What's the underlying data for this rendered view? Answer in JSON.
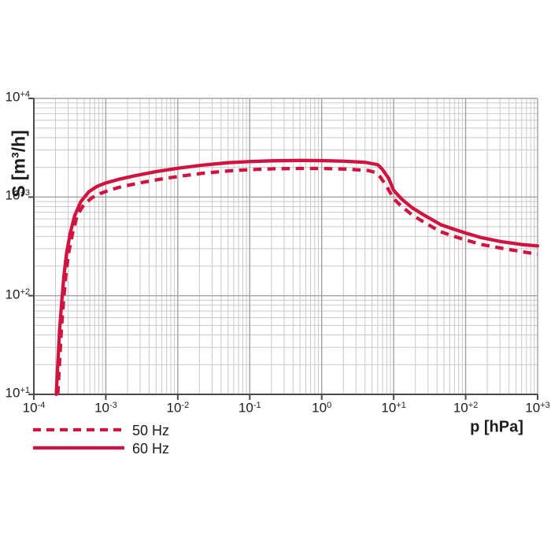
{
  "page": {
    "background": "#ffffff"
  },
  "chart_data": {
    "type": "line",
    "title": "",
    "xlabel": "p [hPa]",
    "ylabel": "S [m³/h]",
    "x_scale": "log",
    "y_scale": "log",
    "xlim": [
      0.0001,
      1000
    ],
    "ylim": [
      10,
      10000
    ],
    "x_tick_exponents": [
      "-4",
      "-3",
      "-2",
      "-1",
      "0",
      "+1",
      "+2",
      "+3"
    ],
    "y_tick_exponents": [
      "+1",
      "+2",
      "+3",
      "+4"
    ],
    "grid": "major and minor log gridlines on both axes",
    "legend_position": "below plot, bottom-left",
    "colors": {
      "curve": "#d01440",
      "grid_minor": "#c9c9c9",
      "grid_major": "#a2a2a2",
      "axis": "#4a4a4a",
      "text": "#1d1d1b"
    },
    "series": [
      {
        "name": "50 Hz",
        "style": "dashed",
        "points": [
          [
            0.000215,
            10
          ],
          [
            0.000227,
            20
          ],
          [
            0.000241,
            45
          ],
          [
            0.000259,
            90
          ],
          [
            0.000278,
            160
          ],
          [
            0.000304,
            270
          ],
          [
            0.000345,
            430
          ],
          [
            0.0004,
            650
          ],
          [
            0.0005,
            850
          ],
          [
            0.00065,
            990
          ],
          [
            0.00085,
            1090
          ],
          [
            0.00115,
            1180
          ],
          [
            0.0017,
            1280
          ],
          [
            0.0028,
            1380
          ],
          [
            0.0055,
            1510
          ],
          [
            0.011,
            1630
          ],
          [
            0.022,
            1740
          ],
          [
            0.055,
            1850
          ],
          [
            0.11,
            1900
          ],
          [
            0.22,
            1935
          ],
          [
            0.55,
            1950
          ],
          [
            1.1,
            1945
          ],
          [
            2.2,
            1920
          ],
          [
            4.4,
            1860
          ],
          [
            5.5,
            1780
          ],
          [
            6.5,
            1600
          ],
          [
            8,
            1280
          ],
          [
            10,
            960
          ],
          [
            13,
            800
          ],
          [
            18,
            660
          ],
          [
            27,
            550
          ],
          [
            45,
            445
          ],
          [
            70,
            398
          ],
          [
            100,
            368
          ],
          [
            160,
            332
          ],
          [
            300,
            305
          ],
          [
            600,
            280
          ],
          [
            1000,
            263
          ]
        ]
      },
      {
        "name": "60 Hz",
        "style": "solid",
        "points": [
          [
            0.000205,
            10
          ],
          [
            0.000215,
            20
          ],
          [
            0.000228,
            45
          ],
          [
            0.000245,
            90
          ],
          [
            0.000262,
            160
          ],
          [
            0.000285,
            270
          ],
          [
            0.00032,
            430
          ],
          [
            0.00037,
            650
          ],
          [
            0.00045,
            900
          ],
          [
            0.00058,
            1130
          ],
          [
            0.00075,
            1280
          ],
          [
            0.001,
            1390
          ],
          [
            0.0015,
            1510
          ],
          [
            0.0025,
            1640
          ],
          [
            0.005,
            1810
          ],
          [
            0.01,
            1960
          ],
          [
            0.02,
            2090
          ],
          [
            0.05,
            2230
          ],
          [
            0.1,
            2290
          ],
          [
            0.2,
            2330
          ],
          [
            0.5,
            2350
          ],
          [
            1,
            2340
          ],
          [
            2,
            2310
          ],
          [
            4,
            2250
          ],
          [
            6,
            2130
          ],
          [
            7,
            1900
          ],
          [
            8.5,
            1550
          ],
          [
            10,
            1170
          ],
          [
            13,
            950
          ],
          [
            18,
            780
          ],
          [
            27,
            650
          ],
          [
            45,
            525
          ],
          [
            70,
            470
          ],
          [
            100,
            432
          ],
          [
            160,
            390
          ],
          [
            300,
            355
          ],
          [
            600,
            330
          ],
          [
            1000,
            320
          ]
        ]
      }
    ]
  }
}
